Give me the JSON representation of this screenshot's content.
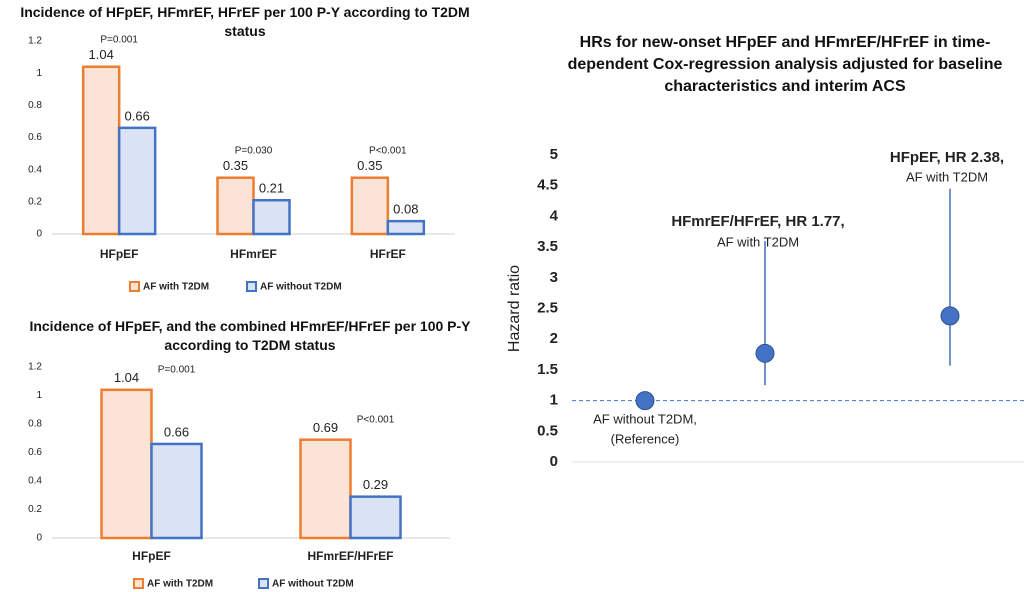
{
  "chart_data": [
    {
      "type": "bar",
      "title": "Incidence of HFpEF, HFmrEF, HFrEF per 100 P-Y according to T2DM status",
      "categories": [
        "HFpEF",
        "HFmrEF",
        "HFrEF"
      ],
      "series": [
        {
          "name": "AF with T2DM",
          "color": "#ed7d31",
          "fill": "#fbe3d6",
          "values": [
            1.04,
            0.35,
            0.35
          ]
        },
        {
          "name": "AF without T2DM",
          "color": "#4472c4",
          "fill": "#dae3f3",
          "values": [
            0.66,
            0.21,
            0.08
          ]
        }
      ],
      "annotations": [
        "P=0.001",
        "P=0.030",
        "P<0.001"
      ],
      "ylim": [
        0,
        1.2
      ],
      "yticks": [
        0,
        0.2,
        0.4,
        0.6,
        0.8,
        1,
        1.2
      ],
      "legend": "bottom"
    },
    {
      "type": "bar",
      "title": "Incidence of HFpEF, and the combined HFmrEF/HFrEF per 100 P-Y according to T2DM status",
      "categories": [
        "HFpEF",
        "HFmrEF/HFrEF"
      ],
      "series": [
        {
          "name": "AF with T2DM",
          "color": "#ed7d31",
          "fill": "#fbe3d6",
          "values": [
            1.04,
            0.69
          ]
        },
        {
          "name": "AF without T2DM",
          "color": "#4472c4",
          "fill": "#dae3f3",
          "values": [
            0.66,
            0.29
          ]
        }
      ],
      "annotations": [
        "P=0.001",
        "P<0.001"
      ],
      "ylim": [
        0,
        1.2
      ],
      "yticks": [
        0,
        0.2,
        0.4,
        0.6,
        0.8,
        1,
        1.2
      ],
      "legend": "bottom"
    },
    {
      "type": "errorbar",
      "title": "HRs for new-onset HFpEF and HFmrEF/HFrEF in time-dependent Cox-regression analysis adjusted for baseline characteristics and interim ACS",
      "y_label": "Hazard ratio",
      "values": [
        1,
        1.77,
        2.38
      ],
      "ci_low": [
        null,
        1.25,
        1.57
      ],
      "ci_high": [
        null,
        3.6,
        4.45
      ],
      "labels": [
        [
          "AF without T2DM,",
          "(Reference)"
        ],
        [
          "HFmrEF/HFrEF, HR 1.77,",
          "AF with T2DM"
        ],
        [
          "HFpEF, HR 2.38,",
          "AF with T2DM"
        ]
      ],
      "color": "#4472c4",
      "reference_line": 1,
      "ylim": [
        0,
        5
      ],
      "yticks": [
        0,
        0.5,
        1,
        1.5,
        2,
        2.5,
        3,
        3.5,
        4,
        4.5,
        5
      ]
    }
  ]
}
